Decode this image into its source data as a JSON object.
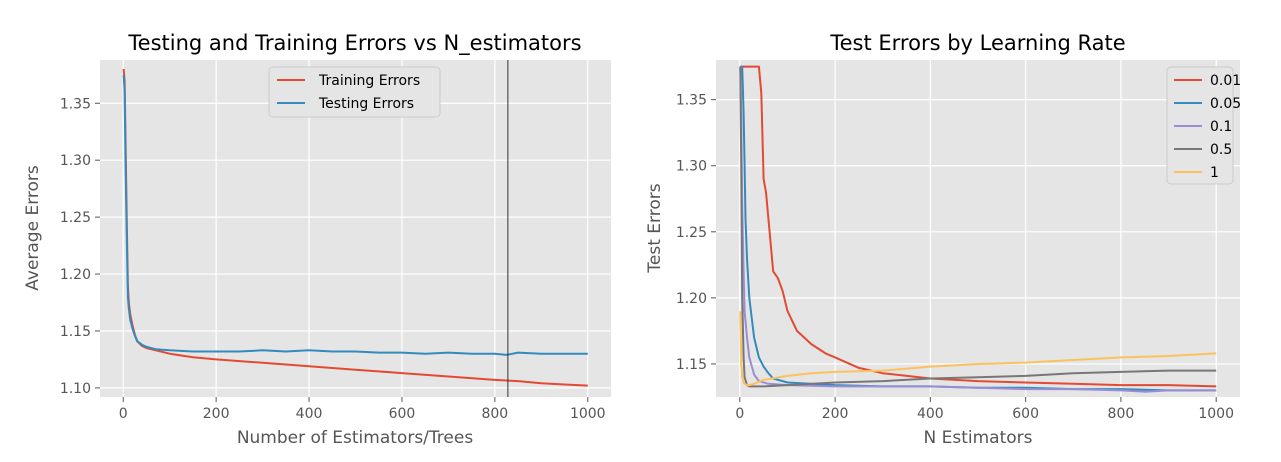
{
  "chart_data": [
    {
      "type": "line",
      "title": "Testing and Training Errors vs N_estimators",
      "xlabel": "Number of Estimators/Trees",
      "ylabel": "Average Errors",
      "xlim": [
        -50,
        1050
      ],
      "ylim": [
        1.092,
        1.388
      ],
      "xticks": [
        0,
        200,
        400,
        600,
        800,
        1000
      ],
      "xtick_labels": [
        "0",
        "200",
        "400",
        "600",
        "800",
        "1000"
      ],
      "yticks": [
        1.1,
        1.15,
        1.2,
        1.25,
        1.3,
        1.35
      ],
      "ytick_labels": [
        "1.10",
        "1.15",
        "1.20",
        "1.25",
        "1.30",
        "1.35"
      ],
      "grid": true,
      "legend_position": "top-center",
      "vline_x": 828,
      "vline_color": "#333333",
      "series": [
        {
          "name": "Training Errors",
          "color": "#e24a33",
          "x": [
            1,
            3,
            5,
            8,
            10,
            12,
            15,
            20,
            25,
            30,
            40,
            50,
            70,
            100,
            150,
            200,
            300,
            400,
            500,
            600,
            700,
            800,
            850,
            900,
            950,
            1000
          ],
          "y": [
            1.38,
            1.37,
            1.32,
            1.24,
            1.19,
            1.175,
            1.165,
            1.155,
            1.147,
            1.141,
            1.137,
            1.135,
            1.133,
            1.13,
            1.127,
            1.125,
            1.122,
            1.119,
            1.116,
            1.113,
            1.11,
            1.107,
            1.106,
            1.104,
            1.103,
            1.102
          ]
        },
        {
          "name": "Testing Errors",
          "color": "#348abd",
          "x": [
            1,
            3,
            5,
            8,
            10,
            12,
            15,
            20,
            25,
            30,
            40,
            50,
            70,
            100,
            150,
            200,
            250,
            300,
            350,
            400,
            450,
            500,
            550,
            600,
            650,
            700,
            750,
            800,
            825,
            850,
            900,
            950,
            1000
          ],
          "y": [
            1.375,
            1.36,
            1.3,
            1.225,
            1.18,
            1.17,
            1.16,
            1.152,
            1.146,
            1.141,
            1.138,
            1.136,
            1.134,
            1.133,
            1.132,
            1.132,
            1.132,
            1.133,
            1.132,
            1.133,
            1.132,
            1.132,
            1.131,
            1.131,
            1.13,
            1.131,
            1.13,
            1.13,
            1.129,
            1.131,
            1.13,
            1.13,
            1.13
          ]
        }
      ]
    },
    {
      "type": "line",
      "title": "Test Errors by Learning Rate",
      "xlabel": "N Estimators",
      "ylabel": "Test Errors",
      "xlim": [
        -50,
        1050
      ],
      "ylim": [
        1.125,
        1.38
      ],
      "xticks": [
        0,
        200,
        400,
        600,
        800,
        1000
      ],
      "xtick_labels": [
        "0",
        "200",
        "400",
        "600",
        "800",
        "1000"
      ],
      "yticks": [
        1.15,
        1.2,
        1.25,
        1.3,
        1.35
      ],
      "ytick_labels": [
        "1.15",
        "1.20",
        "1.25",
        "1.30",
        "1.35"
      ],
      "grid": true,
      "legend_position": "top-right",
      "series": [
        {
          "name": "0.01",
          "color": "#e24a33",
          "x": [
            1,
            10,
            30,
            40,
            45,
            50,
            55,
            60,
            70,
            80,
            90,
            100,
            120,
            150,
            180,
            200,
            250,
            300,
            400,
            500,
            600,
            700,
            800,
            900,
            1000
          ],
          "y": [
            1.375,
            1.375,
            1.375,
            1.375,
            1.355,
            1.29,
            1.28,
            1.26,
            1.22,
            1.215,
            1.205,
            1.19,
            1.175,
            1.165,
            1.158,
            1.155,
            1.147,
            1.143,
            1.139,
            1.137,
            1.136,
            1.135,
            1.134,
            1.134,
            1.133
          ]
        },
        {
          "name": "0.05",
          "color": "#348abd",
          "x": [
            1,
            5,
            8,
            10,
            12,
            15,
            20,
            25,
            30,
            40,
            50,
            60,
            70,
            100,
            200,
            300,
            400,
            500,
            600,
            700,
            800,
            900,
            1000
          ],
          "y": [
            1.375,
            1.375,
            1.34,
            1.3,
            1.26,
            1.23,
            1.2,
            1.185,
            1.17,
            1.155,
            1.148,
            1.143,
            1.139,
            1.136,
            1.134,
            1.133,
            1.133,
            1.132,
            1.132,
            1.131,
            1.131,
            1.13,
            1.13
          ]
        },
        {
          "name": "0.1",
          "color": "#988ed5",
          "x": [
            1,
            3,
            5,
            8,
            10,
            15,
            20,
            30,
            40,
            60,
            100,
            200,
            300,
            400,
            500,
            600,
            700,
            800,
            850,
            900,
            1000
          ],
          "y": [
            1.375,
            1.34,
            1.27,
            1.22,
            1.19,
            1.17,
            1.155,
            1.142,
            1.137,
            1.135,
            1.134,
            1.133,
            1.133,
            1.133,
            1.132,
            1.131,
            1.131,
            1.13,
            1.129,
            1.13,
            1.13
          ]
        },
        {
          "name": "0.5",
          "color": "#777777",
          "x": [
            1,
            3,
            5,
            8,
            10,
            15,
            20,
            30,
            50,
            100,
            200,
            300,
            400,
            500,
            600,
            700,
            800,
            900,
            1000
          ],
          "y": [
            1.375,
            1.3,
            1.2,
            1.155,
            1.14,
            1.134,
            1.133,
            1.133,
            1.133,
            1.134,
            1.136,
            1.137,
            1.139,
            1.14,
            1.141,
            1.143,
            1.144,
            1.145,
            1.145
          ]
        },
        {
          "name": "1",
          "color": "#fbc15e",
          "x": [
            1,
            2,
            3,
            5,
            8,
            10,
            15,
            20,
            30,
            50,
            100,
            150,
            200,
            300,
            400,
            500,
            600,
            700,
            800,
            900,
            1000
          ],
          "y": [
            1.19,
            1.17,
            1.15,
            1.14,
            1.136,
            1.135,
            1.134,
            1.134,
            1.135,
            1.138,
            1.141,
            1.143,
            1.144,
            1.145,
            1.148,
            1.15,
            1.151,
            1.153,
            1.155,
            1.156,
            1.158
          ]
        }
      ]
    }
  ]
}
